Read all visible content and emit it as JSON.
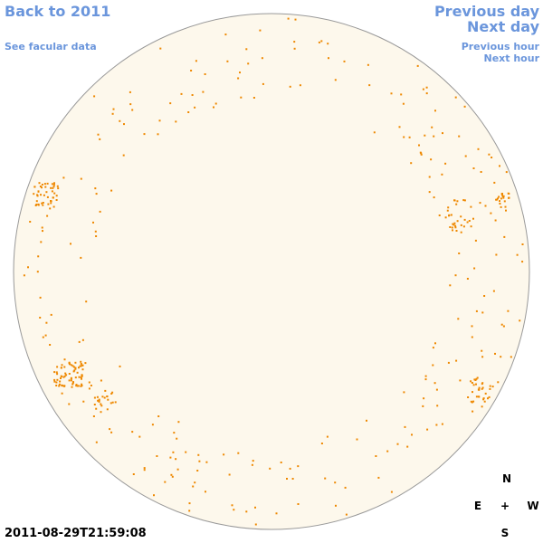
{
  "nav": {
    "back_year": "Back to 2011",
    "facular_data": "See facular data",
    "previous_day": "Previous day",
    "next_day": "Next day",
    "previous_hour": "Previous hour",
    "next_hour": "Next hour"
  },
  "timestamp": "2011-08-29T21:59:08",
  "compass": {
    "north": "N",
    "east": "E",
    "center": "+",
    "west": "W",
    "south": "S"
  }
}
